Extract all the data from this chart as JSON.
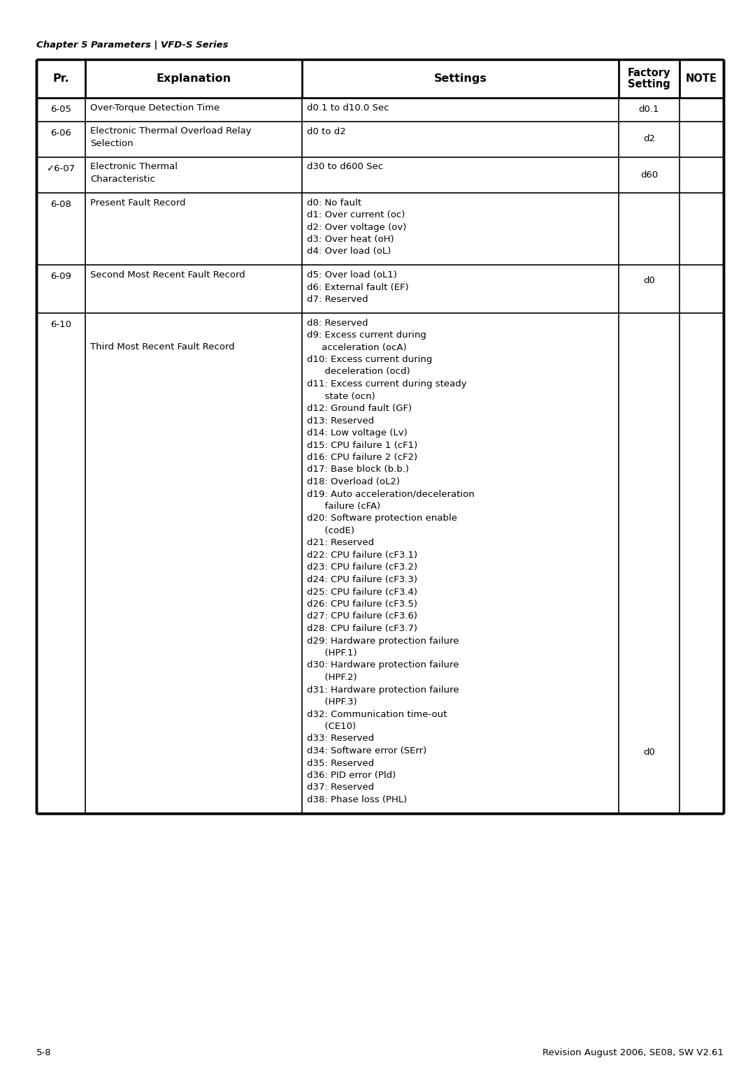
{
  "page_header": "Chapter 5 Parameters | VFD-S Series",
  "page_footer_left": "5-8",
  "page_footer_right": "Revision August 2006, SE08, SW V2.61",
  "rows": [
    {
      "pr": "6-05",
      "pr_prefix": "",
      "explanation": [
        "Over-Torque Detection Time"
      ],
      "settings": [
        "d0.1 to d10.0 Sec"
      ],
      "factory": "d0.1",
      "factory_valign": "center"
    },
    {
      "pr": "6-06",
      "pr_prefix": "",
      "explanation": [
        "Electronic Thermal Overload Relay",
        "Selection"
      ],
      "settings": [
        "d0 to d2"
      ],
      "factory": "d2",
      "factory_valign": "center"
    },
    {
      "pr": "6-07",
      "pr_prefix": "✓",
      "explanation": [
        "Electronic Thermal",
        "Characteristic"
      ],
      "settings": [
        "d30 to d600 Sec"
      ],
      "factory": "d60",
      "factory_valign": "center"
    },
    {
      "pr": "6-08",
      "pr_prefix": "",
      "explanation": [
        "Present Fault Record"
      ],
      "settings": [
        "d0: No fault",
        "d1: Over current (oc)",
        "d2: Over voltage (ov)",
        "d3: Over heat (oH)",
        "d4: Over load (oL)"
      ],
      "factory": "",
      "factory_valign": "center"
    },
    {
      "pr": "6-09",
      "pr_prefix": "",
      "explanation": [
        "Second Most Recent Fault Record"
      ],
      "settings": [
        "d5: Over load (oL1)",
        "d6: External fault (EF)",
        "d7: Reserved"
      ],
      "factory": "d0",
      "factory_valign": "top_third"
    },
    {
      "pr": "6-10",
      "pr_prefix": "",
      "explanation": [
        "",
        "",
        "Third Most Recent Fault Record"
      ],
      "settings": [
        "d8: Reserved",
        "d9: Excess current during",
        "     acceleration (ocA)",
        "d10: Excess current during",
        "      deceleration (ocd)",
        "d11: Excess current during steady",
        "      state (ocn)",
        "d12: Ground fault (GF)",
        "d13: Reserved",
        "d14: Low voltage (Lv)",
        "d15: CPU failure 1 (cF1)",
        "d16: CPU failure 2 (cF2)",
        "d17: Base block (b.b.)",
        "d18: Overload (oL2)",
        "d19: Auto acceleration/deceleration",
        "      failure (cFA)",
        "d20: Software protection enable",
        "      (codE)",
        "d21: Reserved",
        "d22: CPU failure (cF3.1)",
        "d23: CPU failure (cF3.2)",
        "d24: CPU failure (cF3.3)",
        "d25: CPU failure (cF3.4)",
        "d26: CPU failure (cF3.5)",
        "d27: CPU failure (cF3.6)",
        "d28: CPU failure (cF3.7)",
        "d29: Hardware protection failure",
        "      (HPF.1)",
        "d30: Hardware protection failure",
        "      (HPF.2)",
        "d31: Hardware protection failure",
        "      (HPF.3)",
        "d32: Communication time-out",
        "      (CE10)",
        "d33: Reserved",
        "d34: Software error (SErr)",
        "d35: Reserved",
        "d36: PID error (Pld)",
        "d37: Reserved",
        "d38: Phase loss (PHL)"
      ],
      "factory": "d0",
      "factory_valign": "near_bottom"
    }
  ],
  "bg_color": "#ffffff",
  "text_color": "#000000",
  "border_color": "#000000",
  "font_size": 9.0,
  "header_font_size": 10.5
}
